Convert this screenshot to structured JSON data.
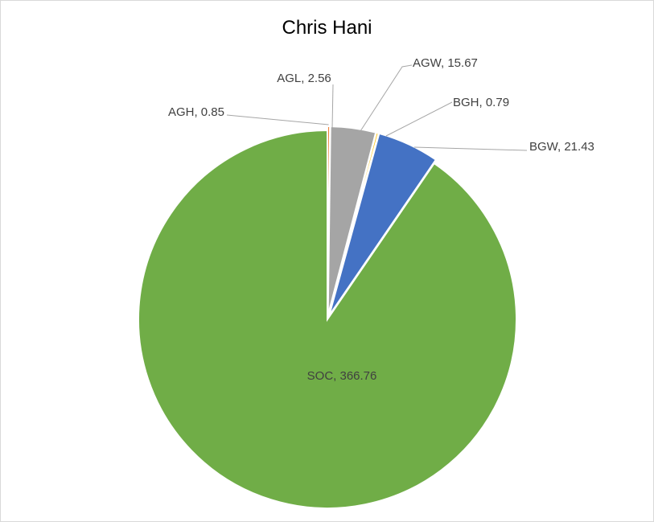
{
  "chart_data": {
    "type": "pie",
    "title": "Chris Hani",
    "slices": [
      {
        "label": "SOC",
        "value": 366.76,
        "color": "#70ad47"
      },
      {
        "label": "AGH",
        "value": 0.85,
        "color": "#ed7d31"
      },
      {
        "label": "AGW",
        "value": 15.67,
        "color": "#a5a5a5"
      },
      {
        "label": "BGH",
        "value": 0.79,
        "color": "#ffc000"
      },
      {
        "label": "BGW",
        "value": 21.43,
        "color": "#4472c4"
      }
    ],
    "data_labels": [
      {
        "text": "SOC, 366.76"
      },
      {
        "text": "AGH, 0.85"
      },
      {
        "text": "AGW, 15.67"
      },
      {
        "text": "BGH, 0.79"
      },
      {
        "text": "BGW, 21.43"
      }
    ],
    "extra_labels": [
      {
        "text": "AGL, 2.56"
      }
    ]
  }
}
